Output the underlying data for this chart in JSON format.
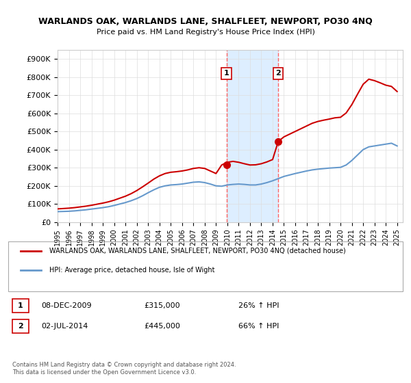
{
  "title": "WARLANDS OAK, WARLANDS LANE, SHALFLEET, NEWPORT, PO30 4NQ",
  "subtitle": "Price paid vs. HM Land Registry's House Price Index (HPI)",
  "ylabel": "",
  "ylim": [
    0,
    950000
  ],
  "yticks": [
    0,
    100000,
    200000,
    300000,
    400000,
    500000,
    600000,
    700000,
    800000,
    900000
  ],
  "ytick_labels": [
    "£0",
    "£100K",
    "£200K",
    "£300K",
    "£400K",
    "£500K",
    "£600K",
    "£700K",
    "£800K",
    "£900K"
  ],
  "xlim_start": 1995.0,
  "xlim_end": 2025.5,
  "sale1_x": 2009.92,
  "sale1_y": 315000,
  "sale1_label": "1",
  "sale1_date": "08-DEC-2009",
  "sale1_price": "£315,000",
  "sale1_hpi": "26% ↑ HPI",
  "sale2_x": 2014.5,
  "sale2_y": 445000,
  "sale2_label": "2",
  "sale2_date": "02-JUL-2014",
  "sale2_price": "£445,000",
  "sale2_hpi": "66% ↑ HPI",
  "hpi_color": "#6699cc",
  "sale_color": "#cc0000",
  "shaded_color": "#ddeeff",
  "dashed_color": "#ff6666",
  "legend_label_sale": "WARLANDS OAK, WARLANDS LANE, SHALFLEET, NEWPORT, PO30 4NQ (detached house)",
  "legend_label_hpi": "HPI: Average price, detached house, Isle of Wight",
  "footnote": "Contains HM Land Registry data © Crown copyright and database right 2024.\nThis data is licensed under the Open Government Licence v3.0.",
  "hpi_data_x": [
    1995,
    1995.5,
    1996,
    1996.5,
    1997,
    1997.5,
    1998,
    1998.5,
    1999,
    1999.5,
    2000,
    2000.5,
    2001,
    2001.5,
    2002,
    2002.5,
    2003,
    2003.5,
    2004,
    2004.5,
    2005,
    2005.5,
    2006,
    2006.5,
    2007,
    2007.5,
    2008,
    2008.5,
    2009,
    2009.5,
    2010,
    2010.5,
    2011,
    2011.5,
    2012,
    2012.5,
    2013,
    2013.5,
    2014,
    2014.5,
    2015,
    2015.5,
    2016,
    2016.5,
    2017,
    2017.5,
    2018,
    2018.5,
    2019,
    2019.5,
    2020,
    2020.5,
    2021,
    2021.5,
    2022,
    2022.5,
    2023,
    2023.5,
    2024,
    2024.5,
    2025
  ],
  "hpi_data_y": [
    58000,
    59000,
    60000,
    62000,
    65000,
    68000,
    72000,
    76000,
    80000,
    85000,
    92000,
    100000,
    108000,
    118000,
    130000,
    145000,
    162000,
    178000,
    192000,
    200000,
    205000,
    207000,
    210000,
    215000,
    220000,
    222000,
    218000,
    210000,
    200000,
    198000,
    205000,
    208000,
    210000,
    208000,
    205000,
    205000,
    210000,
    218000,
    228000,
    240000,
    252000,
    260000,
    268000,
    275000,
    282000,
    288000,
    292000,
    295000,
    298000,
    300000,
    302000,
    315000,
    340000,
    370000,
    400000,
    415000,
    420000,
    425000,
    430000,
    435000,
    420000
  ],
  "sale_data_x": [
    1995,
    1995.5,
    1996,
    1996.5,
    1997,
    1997.5,
    1998,
    1998.5,
    1999,
    1999.5,
    2000,
    2000.5,
    2001,
    2001.5,
    2002,
    2002.5,
    2003,
    2003.5,
    2004,
    2004.5,
    2005,
    2005.5,
    2006,
    2006.5,
    2007,
    2007.5,
    2008,
    2008.5,
    2009,
    2009.5,
    2010,
    2010.5,
    2011,
    2011.5,
    2012,
    2012.5,
    2013,
    2013.5,
    2014,
    2014.5,
    2015,
    2015.5,
    2016,
    2016.5,
    2017,
    2017.5,
    2018,
    2018.5,
    2019,
    2019.5,
    2020,
    2020.5,
    2021,
    2021.5,
    2022,
    2022.5,
    2023,
    2023.5,
    2024,
    2024.5,
    2025
  ],
  "sale_data_y": [
    73000,
    75000,
    77000,
    80000,
    84000,
    88000,
    93000,
    99000,
    105000,
    112000,
    121000,
    132000,
    143000,
    157000,
    174000,
    194000,
    215000,
    237000,
    255000,
    268000,
    275000,
    278000,
    282000,
    288000,
    296000,
    300000,
    296000,
    282000,
    268000,
    315000,
    330000,
    335000,
    330000,
    322000,
    315000,
    316000,
    322000,
    332000,
    345000,
    445000,
    470000,
    485000,
    500000,
    515000,
    530000,
    545000,
    555000,
    562000,
    568000,
    575000,
    578000,
    602000,
    648000,
    705000,
    760000,
    788000,
    780000,
    768000,
    755000,
    748000,
    720000
  ]
}
